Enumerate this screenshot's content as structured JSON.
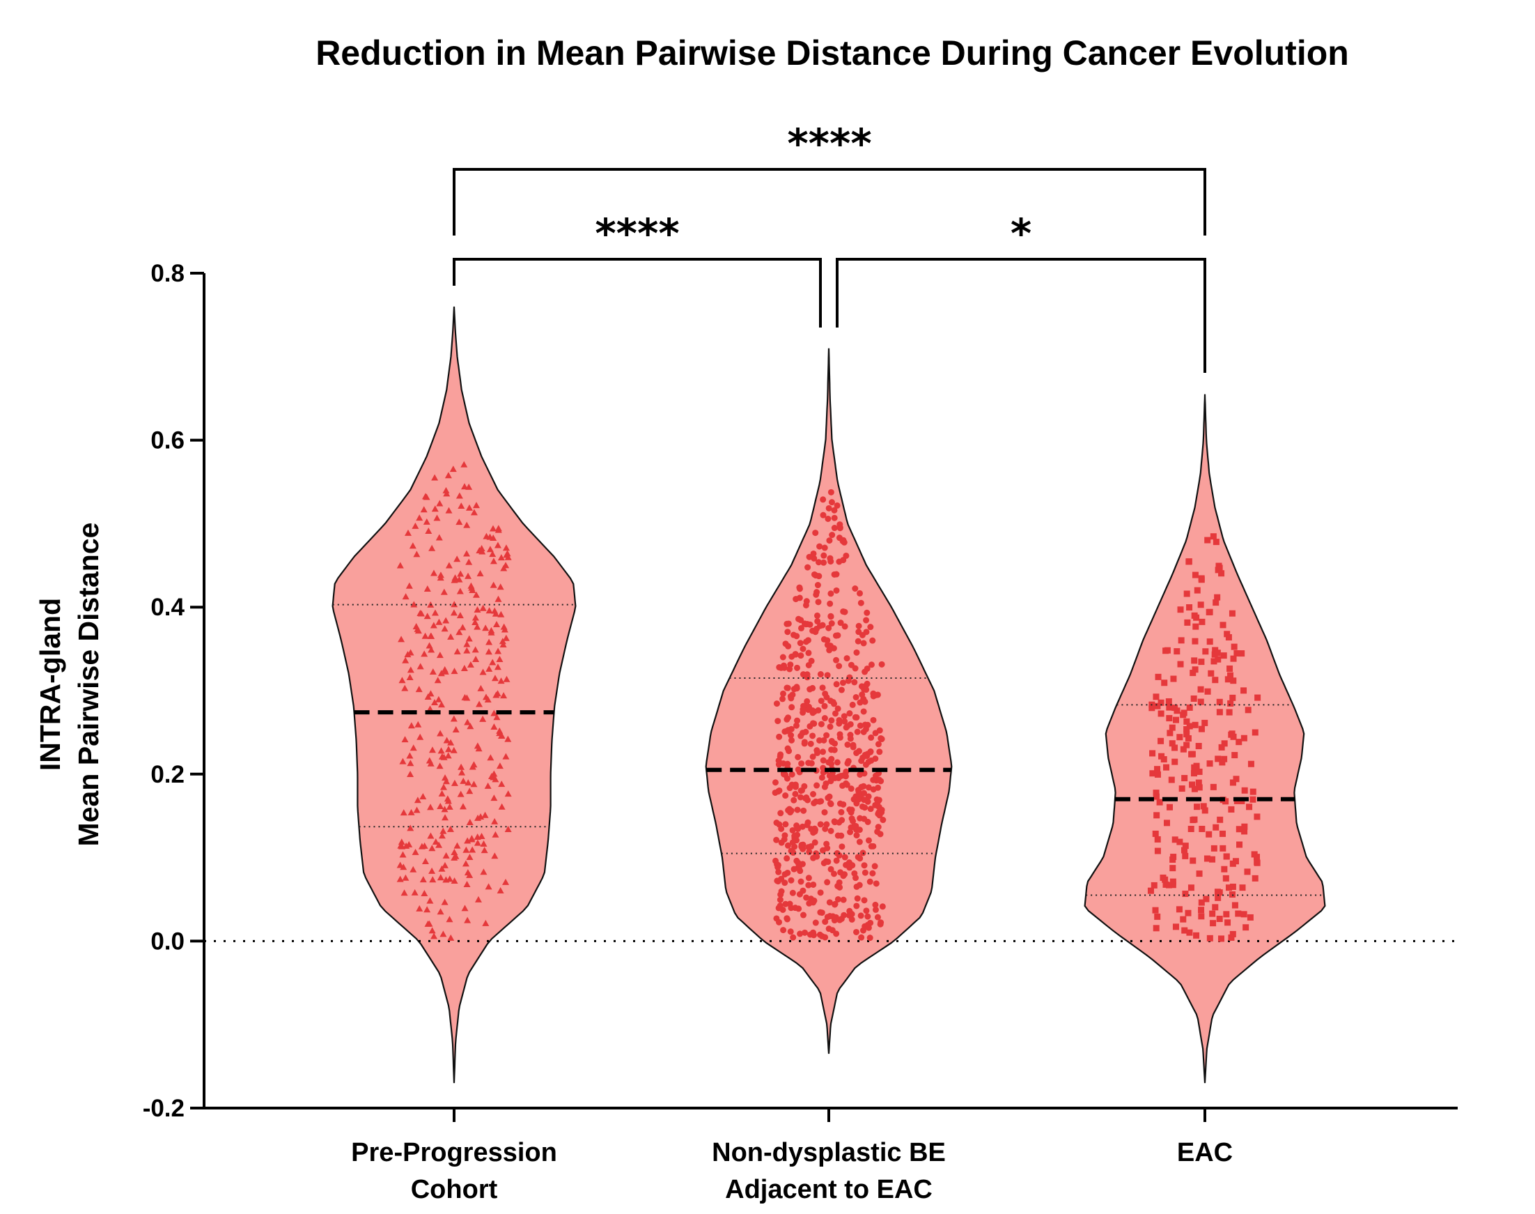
{
  "chart_data": {
    "type": "violin",
    "title": "Reduction in Mean Pairwise Distance During Cancer Evolution",
    "ylabel_lines": [
      "INTRA-gland",
      "Mean Pairwise Distance"
    ],
    "xlabel": "",
    "ylim": [
      -0.2,
      0.8
    ],
    "yticks": [
      -0.2,
      0.0,
      0.2,
      0.4,
      0.6,
      0.8
    ],
    "ytick_labels": [
      "-0.2",
      "0.0",
      "0.2",
      "0.4",
      "0.6",
      "0.8"
    ],
    "reference_line_y": 0.0,
    "colors": {
      "fill": "#f9a09c",
      "points": "#e5383b",
      "outline": "#111111",
      "median": "#000000"
    },
    "groups": [
      {
        "label_lines": [
          "Pre-Progression",
          "Cohort"
        ],
        "marker": "triangle",
        "n_points": 330,
        "median": 0.274,
        "q1": 0.137,
        "q3": 0.403,
        "min": -0.17,
        "max": 0.76,
        "density": [
          [
            -0.17,
            0
          ],
          [
            -0.12,
            0.012
          ],
          [
            -0.08,
            0.04
          ],
          [
            -0.04,
            0.11
          ],
          [
            0.0,
            0.28
          ],
          [
            0.04,
            0.58
          ],
          [
            0.08,
            0.72
          ],
          [
            0.12,
            0.75
          ],
          [
            0.16,
            0.77
          ],
          [
            0.2,
            0.77
          ],
          [
            0.24,
            0.78
          ],
          [
            0.28,
            0.8
          ],
          [
            0.32,
            0.84
          ],
          [
            0.36,
            0.9
          ],
          [
            0.4,
            0.97
          ],
          [
            0.43,
            0.95
          ],
          [
            0.46,
            0.8
          ],
          [
            0.5,
            0.55
          ],
          [
            0.54,
            0.35
          ],
          [
            0.58,
            0.22
          ],
          [
            0.62,
            0.12
          ],
          [
            0.66,
            0.06
          ],
          [
            0.7,
            0.025
          ],
          [
            0.73,
            0.01
          ],
          [
            0.76,
            0
          ]
        ]
      },
      {
        "label_lines": [
          "Non-dysplastic BE",
          "Adjacent to EAC"
        ],
        "marker": "circle",
        "n_points": 620,
        "median": 0.205,
        "q1": 0.105,
        "q3": 0.315,
        "min": -0.135,
        "max": 0.71,
        "density": [
          [
            -0.135,
            0
          ],
          [
            -0.1,
            0.015
          ],
          [
            -0.06,
            0.07
          ],
          [
            -0.03,
            0.22
          ],
          [
            0.0,
            0.52
          ],
          [
            0.03,
            0.74
          ],
          [
            0.06,
            0.82
          ],
          [
            0.1,
            0.85
          ],
          [
            0.14,
            0.9
          ],
          [
            0.18,
            0.96
          ],
          [
            0.21,
            0.98
          ],
          [
            0.25,
            0.94
          ],
          [
            0.3,
            0.84
          ],
          [
            0.35,
            0.68
          ],
          [
            0.4,
            0.5
          ],
          [
            0.45,
            0.3
          ],
          [
            0.5,
            0.15
          ],
          [
            0.55,
            0.07
          ],
          [
            0.6,
            0.025
          ],
          [
            0.65,
            0.01
          ],
          [
            0.71,
            0
          ]
        ]
      },
      {
        "label_lines": [
          "EAC"
        ],
        "marker": "square",
        "n_points": 250,
        "median": 0.17,
        "q1": 0.055,
        "q3": 0.283,
        "min": -0.17,
        "max": 0.655,
        "density": [
          [
            -0.17,
            0
          ],
          [
            -0.13,
            0.015
          ],
          [
            -0.09,
            0.06
          ],
          [
            -0.05,
            0.2
          ],
          [
            -0.02,
            0.44
          ],
          [
            0.01,
            0.72
          ],
          [
            0.04,
            0.97
          ],
          [
            0.07,
            0.95
          ],
          [
            0.1,
            0.82
          ],
          [
            0.14,
            0.74
          ],
          [
            0.18,
            0.72
          ],
          [
            0.22,
            0.78
          ],
          [
            0.25,
            0.8
          ],
          [
            0.28,
            0.72
          ],
          [
            0.32,
            0.6
          ],
          [
            0.36,
            0.5
          ],
          [
            0.4,
            0.38
          ],
          [
            0.44,
            0.26
          ],
          [
            0.48,
            0.15
          ],
          [
            0.52,
            0.08
          ],
          [
            0.56,
            0.035
          ],
          [
            0.6,
            0.012
          ],
          [
            0.655,
            0
          ]
        ]
      }
    ],
    "significance": [
      {
        "from_group": 0,
        "to_group": 2,
        "label": "****"
      },
      {
        "from_group": 0,
        "to_group": 1,
        "label": "****"
      },
      {
        "from_group": 1,
        "to_group": 2,
        "label": "*"
      }
    ]
  }
}
